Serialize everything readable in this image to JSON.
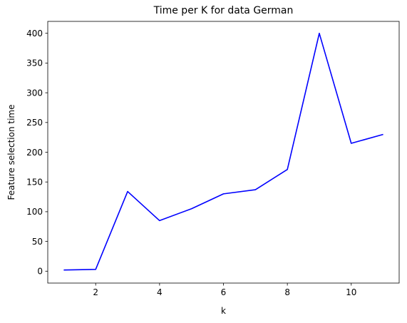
{
  "chart_data": {
    "type": "line",
    "title": "Time per K for data German",
    "xlabel": "k",
    "ylabel": "Feature selection time",
    "xlim": [
      0.5,
      11.5
    ],
    "ylim": [
      -20,
      420
    ],
    "xticks": [
      2,
      4,
      6,
      8,
      10
    ],
    "yticks": [
      0,
      50,
      100,
      150,
      200,
      250,
      300,
      350,
      400
    ],
    "grid": false,
    "legend": "none",
    "series": [
      {
        "color": "#0000ff",
        "x": [
          1,
          2,
          3,
          4,
          5,
          6,
          7,
          8,
          9,
          10,
          11
        ],
        "y": [
          2,
          3,
          134,
          85,
          105,
          130,
          137,
          171,
          400,
          215,
          230
        ]
      }
    ]
  }
}
